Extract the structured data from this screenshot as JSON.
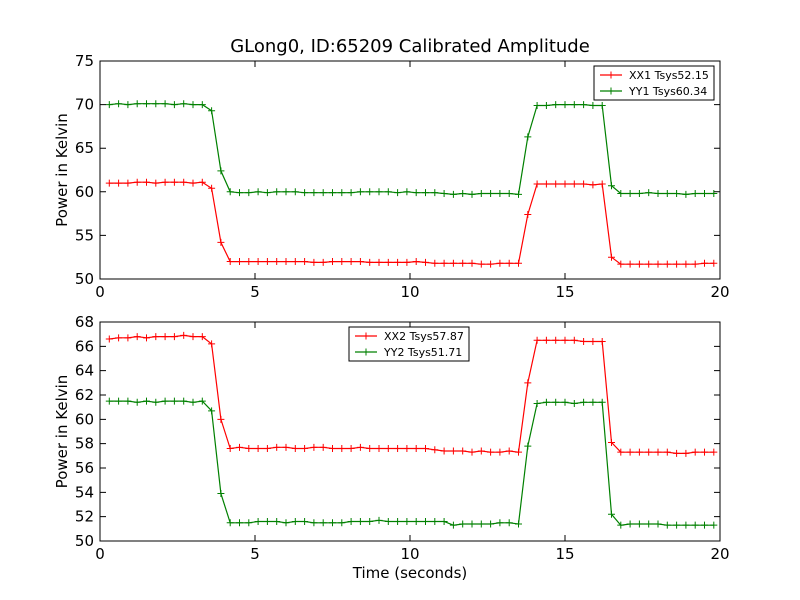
{
  "figure": {
    "title": "GLong0, ID:65209 Calibrated Amplitude"
  },
  "chart_data": [
    {
      "type": "line",
      "title": "GLong0, ID:65209 Calibrated Amplitude",
      "xlabel": "",
      "ylabel": "Power in Kelvin",
      "xlim": [
        0,
        20
      ],
      "ylim": [
        50,
        75
      ],
      "xticks": [
        0,
        5,
        10,
        15,
        20
      ],
      "yticks": [
        50,
        55,
        60,
        65,
        70,
        75
      ],
      "grid": false,
      "legend_position": "top-right",
      "x": [
        0.3,
        0.6,
        0.9,
        1.2,
        1.5,
        1.8,
        2.1,
        2.4,
        2.7,
        3.0,
        3.3,
        3.6,
        3.9,
        4.2,
        4.5,
        4.8,
        5.1,
        5.4,
        5.7,
        6.0,
        6.3,
        6.6,
        6.9,
        7.2,
        7.5,
        7.8,
        8.1,
        8.4,
        8.7,
        9.0,
        9.3,
        9.6,
        9.9,
        10.2,
        10.5,
        10.8,
        11.1,
        11.4,
        11.7,
        12.0,
        12.3,
        12.6,
        12.9,
        13.2,
        13.5,
        13.8,
        14.1,
        14.4,
        14.7,
        15.0,
        15.3,
        15.6,
        15.9,
        16.2,
        16.5,
        16.8,
        17.1,
        17.4,
        17.7,
        18.0,
        18.3,
        18.6,
        18.9,
        19.2,
        19.5,
        19.8
      ],
      "series": [
        {
          "name": "XX1 Tsys52.15",
          "color": "#ff0000",
          "values": [
            61.0,
            61.0,
            61.0,
            61.1,
            61.1,
            61.0,
            61.1,
            61.1,
            61.1,
            61.0,
            61.1,
            60.4,
            54.2,
            52.0,
            52.0,
            52.0,
            52.0,
            52.0,
            52.0,
            52.0,
            52.0,
            52.0,
            51.9,
            51.9,
            52.0,
            52.0,
            52.0,
            52.0,
            51.9,
            51.9,
            51.9,
            51.9,
            51.9,
            52.0,
            51.9,
            51.8,
            51.8,
            51.8,
            51.8,
            51.8,
            51.7,
            51.7,
            51.8,
            51.8,
            51.8,
            57.4,
            60.9,
            60.9,
            60.9,
            60.9,
            60.9,
            60.9,
            60.8,
            60.9,
            52.5,
            51.7,
            51.7,
            51.7,
            51.7,
            51.7,
            51.7,
            51.7,
            51.7,
            51.7,
            51.8,
            51.8
          ]
        },
        {
          "name": "YY1 Tsys60.34",
          "color": "#008000",
          "values": [
            70.0,
            70.1,
            70.0,
            70.1,
            70.1,
            70.1,
            70.1,
            70.0,
            70.1,
            70.0,
            70.0,
            69.3,
            62.4,
            60.0,
            59.9,
            59.9,
            60.0,
            59.9,
            60.0,
            60.0,
            60.0,
            59.9,
            59.9,
            59.9,
            59.9,
            59.9,
            59.9,
            60.0,
            60.0,
            60.0,
            60.0,
            59.9,
            60.0,
            59.9,
            59.9,
            59.9,
            59.8,
            59.7,
            59.8,
            59.7,
            59.8,
            59.8,
            59.8,
            59.8,
            59.7,
            66.3,
            69.9,
            69.9,
            70.0,
            70.0,
            70.0,
            70.0,
            69.9,
            69.9,
            60.7,
            59.8,
            59.8,
            59.8,
            59.9,
            59.8,
            59.8,
            59.8,
            59.7,
            59.8,
            59.8,
            59.8
          ]
        }
      ]
    },
    {
      "type": "line",
      "title": "",
      "xlabel": "Time (seconds)",
      "ylabel": "Power in Kelvin",
      "xlim": [
        0,
        20
      ],
      "ylim": [
        50,
        68
      ],
      "xticks": [
        0,
        5,
        10,
        15,
        20
      ],
      "yticks": [
        50,
        52,
        54,
        56,
        58,
        60,
        62,
        64,
        66,
        68
      ],
      "grid": false,
      "legend_position": "top-center",
      "x": [
        0.3,
        0.6,
        0.9,
        1.2,
        1.5,
        1.8,
        2.1,
        2.4,
        2.7,
        3.0,
        3.3,
        3.6,
        3.9,
        4.2,
        4.5,
        4.8,
        5.1,
        5.4,
        5.7,
        6.0,
        6.3,
        6.6,
        6.9,
        7.2,
        7.5,
        7.8,
        8.1,
        8.4,
        8.7,
        9.0,
        9.3,
        9.6,
        9.9,
        10.2,
        10.5,
        10.8,
        11.1,
        11.4,
        11.7,
        12.0,
        12.3,
        12.6,
        12.9,
        13.2,
        13.5,
        13.8,
        14.1,
        14.4,
        14.7,
        15.0,
        15.3,
        15.6,
        15.9,
        16.2,
        16.5,
        16.8,
        17.1,
        17.4,
        17.7,
        18.0,
        18.3,
        18.6,
        18.9,
        19.2,
        19.5,
        19.8
      ],
      "series": [
        {
          "name": "XX2 Tsys57.87",
          "color": "#ff0000",
          "values": [
            66.6,
            66.7,
            66.7,
            66.8,
            66.7,
            66.8,
            66.8,
            66.8,
            66.9,
            66.8,
            66.8,
            66.2,
            60.0,
            57.6,
            57.7,
            57.6,
            57.6,
            57.6,
            57.7,
            57.7,
            57.6,
            57.6,
            57.7,
            57.7,
            57.6,
            57.6,
            57.6,
            57.7,
            57.6,
            57.6,
            57.6,
            57.6,
            57.6,
            57.6,
            57.6,
            57.5,
            57.4,
            57.4,
            57.4,
            57.3,
            57.4,
            57.3,
            57.3,
            57.4,
            57.3,
            63.0,
            66.5,
            66.5,
            66.5,
            66.5,
            66.5,
            66.4,
            66.4,
            66.4,
            58.1,
            57.3,
            57.3,
            57.3,
            57.3,
            57.3,
            57.3,
            57.2,
            57.2,
            57.3,
            57.3,
            57.3
          ]
        },
        {
          "name": "YY2 Tsys51.71",
          "color": "#008000",
          "values": [
            61.5,
            61.5,
            61.5,
            61.4,
            61.5,
            61.4,
            61.5,
            61.5,
            61.5,
            61.4,
            61.5,
            60.7,
            53.9,
            51.5,
            51.5,
            51.5,
            51.6,
            51.6,
            51.6,
            51.5,
            51.6,
            51.6,
            51.5,
            51.5,
            51.5,
            51.5,
            51.6,
            51.6,
            51.6,
            51.7,
            51.6,
            51.6,
            51.6,
            51.6,
            51.6,
            51.6,
            51.6,
            51.3,
            51.4,
            51.4,
            51.4,
            51.4,
            51.5,
            51.5,
            51.4,
            57.8,
            61.3,
            61.4,
            61.4,
            61.4,
            61.3,
            61.4,
            61.4,
            61.4,
            52.2,
            51.3,
            51.4,
            51.4,
            51.4,
            51.4,
            51.3,
            51.3,
            51.3,
            51.3,
            51.3,
            51.3
          ]
        }
      ]
    }
  ]
}
